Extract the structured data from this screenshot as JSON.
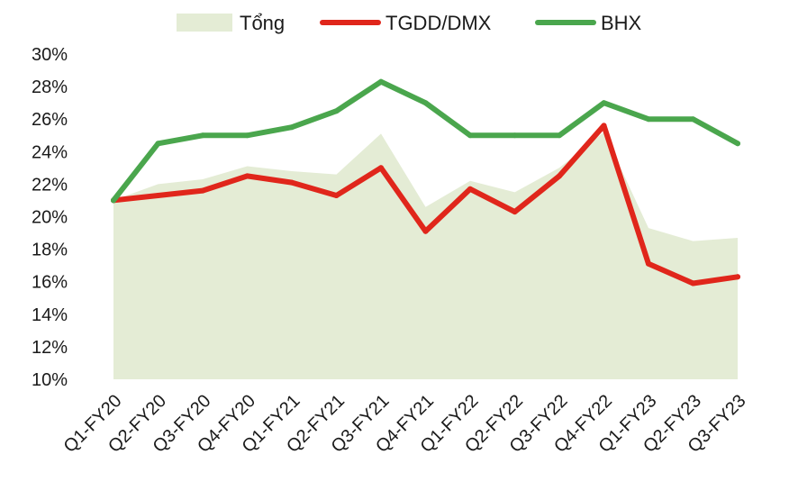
{
  "colors": {
    "total": "#e4ecd5",
    "tgdd": "#e0261b",
    "bhx": "#4aa64d",
    "text": "#1a1a1a"
  },
  "chart_data": {
    "type": "line",
    "title": "",
    "xlabel": "",
    "ylabel": "",
    "ylim": [
      10,
      30
    ],
    "yticks": [
      "30%",
      "28%",
      "26%",
      "24%",
      "22%",
      "20%",
      "18%",
      "16%",
      "14%",
      "12%",
      "10%"
    ],
    "y_tick_values": [
      30,
      28,
      26,
      24,
      22,
      20,
      18,
      16,
      14,
      12,
      10
    ],
    "grid": false,
    "legend": "top",
    "categories": [
      "Q1-FY20",
      "Q2-FY20",
      "Q3-FY20",
      "Q4-FY20",
      "Q1-FY21",
      "Q2-FY21",
      "Q3-FY21",
      "Q4-FY21",
      "Q1-FY22",
      "Q2-FY22",
      "Q3-FY22",
      "Q4-FY22",
      "Q1-FY23",
      "Q2-FY23",
      "Q3-FY23"
    ],
    "series": [
      {
        "name": "Tổng",
        "kind": "area",
        "color": "#e4ecd5",
        "values": [
          21.0,
          22.0,
          22.3,
          23.1,
          22.8,
          22.6,
          25.1,
          20.6,
          22.2,
          21.5,
          23.0,
          25.2,
          19.3,
          18.5,
          18.7
        ]
      },
      {
        "name": "TGDD/DMX",
        "kind": "line",
        "color": "#e0261b",
        "values": [
          21.0,
          21.3,
          21.6,
          22.5,
          22.1,
          21.3,
          23.0,
          19.1,
          21.7,
          20.3,
          22.5,
          25.6,
          17.1,
          15.9,
          16.3
        ]
      },
      {
        "name": "BHX",
        "kind": "line",
        "color": "#4aa64d",
        "values": [
          21.0,
          24.5,
          25.0,
          25.0,
          25.5,
          26.5,
          28.3,
          27.0,
          25.0,
          25.0,
          25.0,
          27.0,
          26.0,
          26.0,
          24.5
        ]
      }
    ]
  }
}
